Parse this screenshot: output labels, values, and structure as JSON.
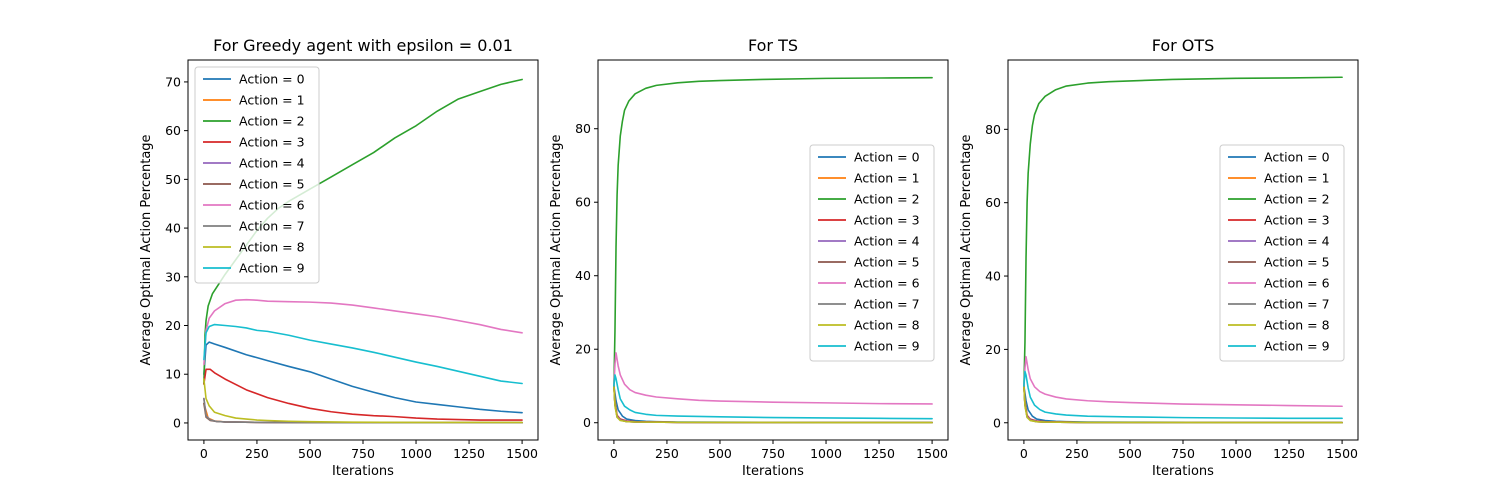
{
  "colors": {
    "Action = 0": "#1f77b4",
    "Action = 1": "#ff7f0e",
    "Action = 2": "#2ca02c",
    "Action = 3": "#d62728",
    "Action = 4": "#9467bd",
    "Action = 5": "#8c564b",
    "Action = 6": "#e377c2",
    "Action = 7": "#7f7f7f",
    "Action = 8": "#bcbd22",
    "Action = 9": "#17becf"
  },
  "chart_data": [
    {
      "type": "line",
      "title": "For Greedy agent with epsilon = 0.01",
      "xlabel": "Iterations",
      "ylabel": "Average Optimal Action Percentage",
      "xlim": [
        -75,
        1575
      ],
      "ylim": [
        -3.5,
        74.5
      ],
      "xticks": [
        0,
        250,
        500,
        750,
        1000,
        1250,
        1500
      ],
      "yticks": [
        0,
        10,
        20,
        30,
        40,
        50,
        60,
        70
      ],
      "legend": "upper-left",
      "series": [
        {
          "name": "Action = 0",
          "x": [
            0,
            10,
            25,
            50,
            100,
            200,
            300,
            400,
            500,
            600,
            700,
            800,
            900,
            1000,
            1100,
            1200,
            1300,
            1400,
            1500
          ],
          "y": [
            10,
            16,
            16.6,
            16.2,
            15.5,
            14,
            12.8,
            11.6,
            10.5,
            9,
            7.5,
            6.3,
            5.2,
            4.3,
            3.8,
            3.3,
            2.8,
            2.4,
            2.1
          ]
        },
        {
          "name": "Action = 1",
          "x": [
            0,
            20,
            50,
            100,
            300,
            600,
            1000,
            1500
          ],
          "y": [
            4,
            1,
            0.4,
            0.2,
            0.1,
            0.05,
            0.05,
            0.05
          ]
        },
        {
          "name": "Action = 2",
          "x": [
            0,
            5,
            10,
            20,
            40,
            70,
            100,
            150,
            200,
            250,
            300,
            350,
            400,
            500,
            600,
            700,
            800,
            900,
            1000,
            1100,
            1200,
            1300,
            1400,
            1500
          ],
          "y": [
            8,
            18,
            21,
            24,
            26.5,
            28.5,
            30.5,
            33.5,
            36.5,
            39.5,
            42,
            44,
            45.5,
            48,
            50.5,
            53,
            55.5,
            58.5,
            61,
            64,
            66.5,
            68,
            69.5,
            70.5
          ]
        },
        {
          "name": "Action = 3",
          "x": [
            0,
            10,
            30,
            50,
            100,
            200,
            300,
            400,
            500,
            600,
            700,
            800,
            900,
            1000,
            1100,
            1200,
            1300,
            1400,
            1500
          ],
          "y": [
            8,
            11,
            11,
            10.3,
            9,
            6.8,
            5.2,
            4,
            3,
            2.3,
            1.8,
            1.5,
            1.3,
            1,
            0.8,
            0.7,
            0.6,
            0.6,
            0.6
          ]
        },
        {
          "name": "Action = 4",
          "x": [
            0,
            10,
            30,
            60,
            100,
            300,
            600,
            1000,
            1500
          ],
          "y": [
            5,
            1.5,
            0.6,
            0.3,
            0.2,
            0.1,
            0.05,
            0.05,
            0.05
          ]
        },
        {
          "name": "Action = 5",
          "x": [
            0,
            10,
            30,
            60,
            100,
            300,
            600,
            1000,
            1500
          ],
          "y": [
            4,
            1.2,
            0.5,
            0.3,
            0.2,
            0.1,
            0.05,
            0.05,
            0.05
          ]
        },
        {
          "name": "Action = 6",
          "x": [
            0,
            10,
            25,
            50,
            100,
            150,
            200,
            250,
            300,
            400,
            500,
            600,
            700,
            800,
            900,
            1000,
            1100,
            1200,
            1300,
            1400,
            1500
          ],
          "y": [
            12,
            19,
            21.5,
            23,
            24.5,
            25.2,
            25.3,
            25.2,
            25,
            24.9,
            24.8,
            24.6,
            24.2,
            23.6,
            23,
            22.4,
            21.8,
            21,
            20.2,
            19.2,
            18.5
          ]
        },
        {
          "name": "Action = 7",
          "x": [
            0,
            10,
            30,
            60,
            100,
            300,
            600,
            1000,
            1500
          ],
          "y": [
            5,
            1.4,
            0.6,
            0.3,
            0.2,
            0.1,
            0.05,
            0.05,
            0.05
          ]
        },
        {
          "name": "Action = 8",
          "x": [
            0,
            10,
            25,
            50,
            100,
            150,
            200,
            250,
            300,
            400,
            500,
            700,
            1000,
            1500
          ],
          "y": [
            9,
            5,
            3.5,
            2.2,
            1.5,
            1,
            0.8,
            0.6,
            0.5,
            0.35,
            0.25,
            0.15,
            0.1,
            0.1
          ]
        },
        {
          "name": "Action = 9",
          "x": [
            0,
            10,
            25,
            50,
            100,
            150,
            200,
            250,
            300,
            400,
            500,
            600,
            700,
            800,
            900,
            1000,
            1100,
            1200,
            1300,
            1400,
            1500
          ],
          "y": [
            13,
            18.5,
            19.8,
            20.2,
            20,
            19.8,
            19.5,
            19,
            18.8,
            18,
            17,
            16.2,
            15.4,
            14.5,
            13.5,
            12.5,
            11.6,
            10.6,
            9.6,
            8.6,
            8.1
          ]
        }
      ]
    },
    {
      "type": "line",
      "title": "For TS",
      "xlabel": "Iterations",
      "ylabel": "Average Optimal Action Percentage",
      "xlim": [
        -75,
        1575
      ],
      "ylim": [
        -4.7,
        98.7
      ],
      "xticks": [
        0,
        250,
        500,
        750,
        1000,
        1250,
        1500
      ],
      "yticks": [
        0,
        20,
        40,
        60,
        80
      ],
      "legend": "center-right",
      "series": [
        {
          "name": "Action = 0",
          "x": [
            0,
            5,
            10,
            20,
            40,
            60,
            100,
            150,
            200,
            300,
            500,
            1000,
            1500
          ],
          "y": [
            10,
            8,
            6,
            3.5,
            1.8,
            1,
            0.6,
            0.4,
            0.3,
            0.2,
            0.15,
            0.1,
            0.1
          ]
        },
        {
          "name": "Action = 1",
          "x": [
            0,
            5,
            15,
            30,
            60,
            100,
            300,
            1000,
            1500
          ],
          "y": [
            10,
            6,
            2,
            0.8,
            0.3,
            0.2,
            0.1,
            0.05,
            0.05
          ]
        },
        {
          "name": "Action = 2",
          "x": [
            0,
            5,
            10,
            15,
            20,
            30,
            40,
            50,
            70,
            100,
            150,
            200,
            300,
            400,
            500,
            700,
            1000,
            1250,
            1500
          ],
          "y": [
            10,
            25,
            48,
            62,
            70,
            78,
            82,
            85,
            87.5,
            89.5,
            91,
            91.8,
            92.5,
            92.9,
            93.1,
            93.4,
            93.7,
            93.8,
            93.9
          ]
        },
        {
          "name": "Action = 3",
          "x": [
            0,
            5,
            15,
            30,
            60,
            100,
            300,
            1000,
            1500
          ],
          "y": [
            10,
            5,
            2,
            1,
            0.5,
            0.3,
            0.1,
            0.05,
            0.05
          ]
        },
        {
          "name": "Action = 4",
          "x": [
            0,
            5,
            15,
            30,
            60,
            100,
            300,
            1000,
            1500
          ],
          "y": [
            10,
            5,
            1.8,
            0.8,
            0.4,
            0.2,
            0.1,
            0.05,
            0.05
          ]
        },
        {
          "name": "Action = 5",
          "x": [
            0,
            5,
            15,
            30,
            60,
            100,
            300,
            1000,
            1500
          ],
          "y": [
            10,
            5,
            1.5,
            0.7,
            0.3,
            0.2,
            0.1,
            0.05,
            0.05
          ]
        },
        {
          "name": "Action = 6",
          "x": [
            0,
            5,
            10,
            20,
            30,
            50,
            75,
            100,
            150,
            200,
            300,
            400,
            500,
            750,
            1000,
            1250,
            1500
          ],
          "y": [
            10,
            16,
            19,
            15.5,
            13,
            10.5,
            9,
            8.2,
            7.5,
            7,
            6.5,
            6.1,
            5.9,
            5.6,
            5.4,
            5.2,
            5.1
          ]
        },
        {
          "name": "Action = 7",
          "x": [
            0,
            5,
            15,
            30,
            60,
            100,
            300,
            1000,
            1500
          ],
          "y": [
            10,
            5,
            1.6,
            0.7,
            0.3,
            0.2,
            0.1,
            0.05,
            0.05
          ]
        },
        {
          "name": "Action = 8",
          "x": [
            0,
            5,
            15,
            30,
            60,
            100,
            300,
            1000,
            1500
          ],
          "y": [
            10,
            4.5,
            1.5,
            0.6,
            0.3,
            0.2,
            0.1,
            0.05,
            0.05
          ]
        },
        {
          "name": "Action = 9",
          "x": [
            0,
            5,
            10,
            20,
            30,
            50,
            75,
            100,
            150,
            200,
            300,
            500,
            750,
            1000,
            1250,
            1500
          ],
          "y": [
            10,
            13,
            12,
            9,
            6.5,
            4.5,
            3.5,
            2.8,
            2.3,
            2,
            1.8,
            1.6,
            1.4,
            1.3,
            1.2,
            1.1
          ]
        }
      ]
    },
    {
      "type": "line",
      "title": "For OTS",
      "xlabel": "Iterations",
      "ylabel": "Average Optimal Action Percentage",
      "xlim": [
        -75,
        1575
      ],
      "ylim": [
        -4.7,
        98.9
      ],
      "xticks": [
        0,
        250,
        500,
        750,
        1000,
        1250,
        1500
      ],
      "yticks": [
        0,
        20,
        40,
        60,
        80
      ],
      "legend": "center-right",
      "series": [
        {
          "name": "Action = 0",
          "x": [
            0,
            5,
            10,
            20,
            40,
            60,
            100,
            150,
            200,
            300,
            500,
            1000,
            1500
          ],
          "y": [
            10,
            8,
            6,
            3.5,
            1.8,
            1,
            0.6,
            0.4,
            0.3,
            0.2,
            0.15,
            0.1,
            0.1
          ]
        },
        {
          "name": "Action = 1",
          "x": [
            0,
            5,
            15,
            30,
            60,
            100,
            300,
            1000,
            1500
          ],
          "y": [
            10,
            6,
            2,
            0.8,
            0.3,
            0.2,
            0.1,
            0.05,
            0.05
          ]
        },
        {
          "name": "Action = 2",
          "x": [
            0,
            5,
            10,
            15,
            20,
            30,
            40,
            50,
            70,
            100,
            150,
            200,
            300,
            400,
            500,
            700,
            1000,
            1250,
            1500
          ],
          "y": [
            10,
            22,
            45,
            60,
            68,
            76,
            81,
            84,
            87,
            89,
            90.8,
            91.8,
            92.6,
            93,
            93.2,
            93.6,
            93.9,
            94,
            94.2
          ]
        },
        {
          "name": "Action = 3",
          "x": [
            0,
            5,
            15,
            30,
            60,
            100,
            300,
            1000,
            1500
          ],
          "y": [
            10,
            5,
            2,
            1,
            0.5,
            0.3,
            0.1,
            0.05,
            0.05
          ]
        },
        {
          "name": "Action = 4",
          "x": [
            0,
            5,
            15,
            30,
            60,
            100,
            300,
            1000,
            1500
          ],
          "y": [
            10,
            5,
            1.8,
            0.8,
            0.4,
            0.2,
            0.1,
            0.05,
            0.05
          ]
        },
        {
          "name": "Action = 5",
          "x": [
            0,
            5,
            15,
            30,
            60,
            100,
            300,
            1000,
            1500
          ],
          "y": [
            10,
            5,
            1.5,
            0.7,
            0.3,
            0.2,
            0.1,
            0.05,
            0.05
          ]
        },
        {
          "name": "Action = 6",
          "x": [
            0,
            5,
            10,
            20,
            30,
            50,
            75,
            100,
            150,
            200,
            300,
            400,
            500,
            750,
            1000,
            1250,
            1500
          ],
          "y": [
            10,
            15,
            18,
            14.5,
            12,
            9.8,
            8.5,
            7.8,
            7,
            6.5,
            6,
            5.7,
            5.5,
            5.1,
            4.9,
            4.7,
            4.5
          ]
        },
        {
          "name": "Action = 7",
          "x": [
            0,
            5,
            15,
            30,
            60,
            100,
            300,
            1000,
            1500
          ],
          "y": [
            10,
            5,
            1.6,
            0.7,
            0.3,
            0.2,
            0.1,
            0.05,
            0.05
          ]
        },
        {
          "name": "Action = 8",
          "x": [
            0,
            5,
            15,
            30,
            60,
            100,
            300,
            1000,
            1500
          ],
          "y": [
            10,
            4.5,
            1.5,
            0.6,
            0.3,
            0.2,
            0.1,
            0.05,
            0.05
          ]
        },
        {
          "name": "Action = 9",
          "x": [
            0,
            5,
            10,
            20,
            30,
            50,
            75,
            100,
            150,
            200,
            300,
            500,
            750,
            1000,
            1250,
            1500
          ],
          "y": [
            10,
            14,
            13,
            9.5,
            7,
            4.8,
            3.6,
            2.9,
            2.4,
            2.1,
            1.8,
            1.6,
            1.4,
            1.3,
            1.2,
            1.2
          ]
        }
      ]
    }
  ]
}
